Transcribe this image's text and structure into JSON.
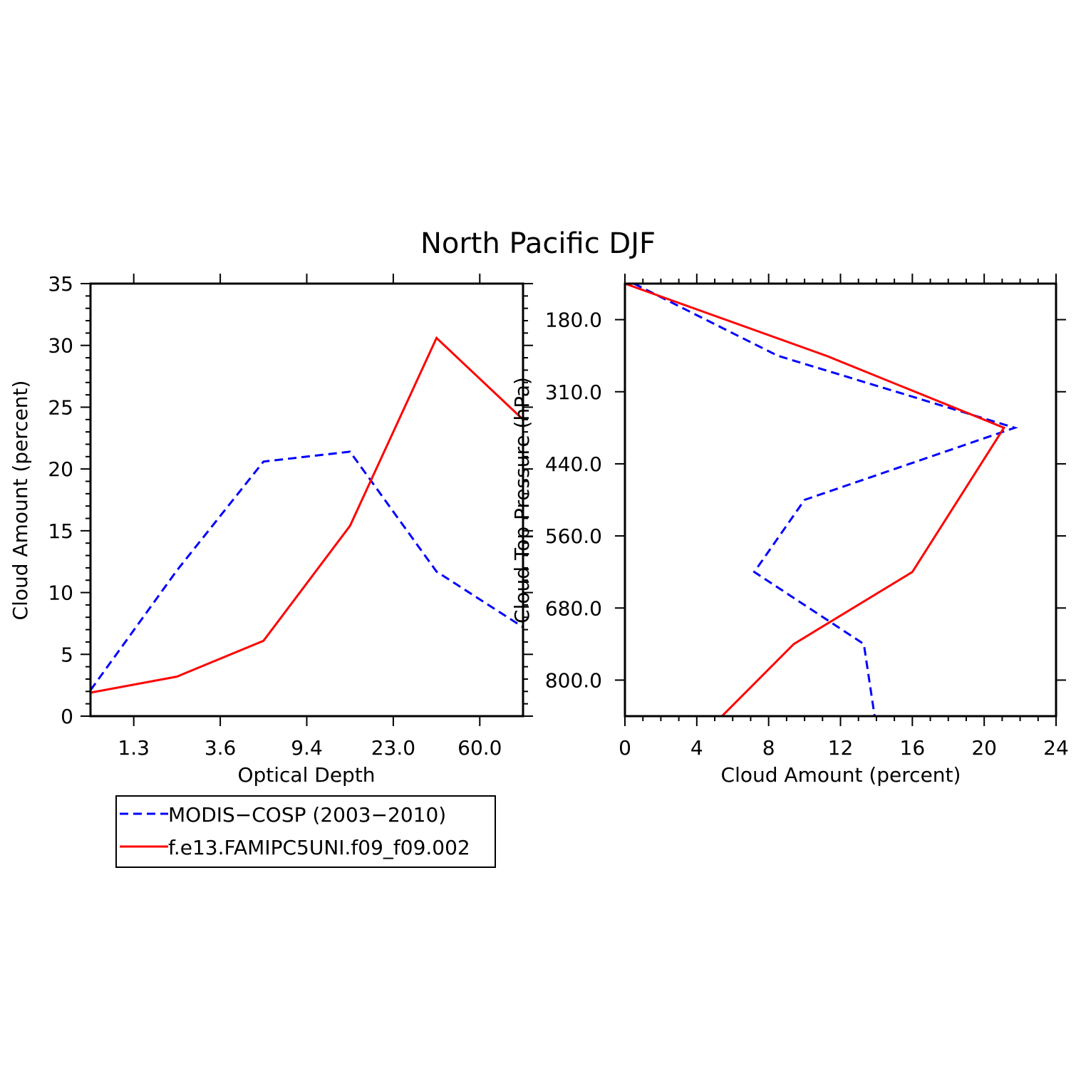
{
  "title": "North Pacific DJF",
  "colors": {
    "obs": "#0000ff",
    "model": "#ff0000",
    "axes": "#000000"
  },
  "legend": {
    "entries": [
      {
        "label": "MODIS−COSP (2003−2010)",
        "style": "dashed",
        "color": "#0000ff"
      },
      {
        "label": "f.e13.FAMIPC5UNI.f09_f09.002",
        "style": "solid",
        "color": "#ff0000"
      }
    ]
  },
  "chart_data": [
    {
      "type": "line",
      "xlabel": "Optical Depth",
      "ylabel": "Cloud Amount (percent)",
      "x_tick_labels": [
        "1.3",
        "3.6",
        "9.4",
        "23.0",
        "60.0"
      ],
      "y_ticks": [
        0,
        5,
        10,
        15,
        20,
        25,
        30,
        35
      ],
      "ylim": [
        0,
        35
      ],
      "categories": [
        "",
        "1.3",
        "",
        "3.6",
        "",
        "9.4",
        "",
        "23.0",
        "",
        "60.0",
        ""
      ],
      "series": [
        {
          "name": "MODIS−COSP (2003−2010)",
          "style": "dashed",
          "values": [
            2.1,
            null,
            11.8,
            null,
            20.6,
            null,
            21.4,
            null,
            11.7,
            null,
            7.2
          ]
        },
        {
          "name": "f.e13.FAMIPC5UNI.f09_f09.002",
          "style": "solid",
          "values": [
            1.9,
            null,
            3.2,
            null,
            6.1,
            null,
            15.4,
            null,
            30.6,
            null,
            24.0
          ]
        }
      ]
    },
    {
      "type": "line",
      "xlabel": "Cloud Amount (percent)",
      "ylabel": "Cloud Top Pressure (hPa)",
      "xlim": [
        0,
        24
      ],
      "x_ticks": [
        0,
        4,
        8,
        12,
        16,
        20,
        24
      ],
      "y_tick_labels": [
        "180.0",
        "310.0",
        "440.0",
        "560.0",
        "680.0",
        "800.0"
      ],
      "y_inverted": true,
      "levels": [
        "",
        "180.0",
        "",
        "310.0",
        "",
        "440.0",
        "",
        "560.0",
        "",
        "680.0",
        "",
        "800.0",
        ""
      ],
      "series": [
        {
          "name": "MODIS−COSP (2003−2010)",
          "style": "dashed",
          "points": [
            [
              0.5,
              0
            ],
            [
              8.5,
              2
            ],
            [
              21.7,
              4
            ],
            [
              10,
              6
            ],
            [
              7.2,
              8
            ],
            [
              13.3,
              10
            ],
            [
              13.9,
              12
            ]
          ]
        },
        {
          "name": "f.e13.FAMIPC5UNI.f09_f09.002",
          "style": "solid",
          "points": [
            [
              0.0,
              0
            ],
            [
              11.2,
              2
            ],
            [
              21.1,
              4
            ],
            [
              16.0,
              8
            ],
            [
              9.4,
              10
            ],
            [
              5.4,
              12
            ]
          ]
        }
      ]
    }
  ]
}
